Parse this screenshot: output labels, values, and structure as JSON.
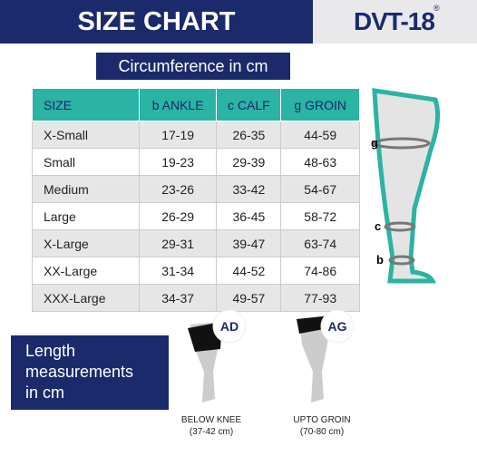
{
  "header": {
    "title": "SIZE CHART",
    "logo": "DVT-18",
    "logo_mark": "®"
  },
  "table": {
    "caption": "Circumference in cm",
    "columns": [
      "SIZE",
      "b ANKLE",
      "c CALF",
      "g GROIN"
    ],
    "rows": [
      [
        "X-Small",
        "17-19",
        "26-35",
        "44-59"
      ],
      [
        "Small",
        "19-23",
        "29-39",
        "48-63"
      ],
      [
        "Medium",
        "23-26",
        "33-42",
        "54-67"
      ],
      [
        "Large",
        "26-29",
        "36-45",
        "58-72"
      ],
      [
        "X-Large",
        "29-31",
        "39-47",
        "63-74"
      ],
      [
        "XX-Large",
        "31-34",
        "44-52",
        "74-86"
      ],
      [
        "XXX-Large",
        "34-37",
        "49-57",
        "77-93"
      ]
    ]
  },
  "leg_labels": [
    "g",
    "c",
    "b"
  ],
  "length": {
    "title_lines": [
      "Length",
      "measurements",
      "in cm"
    ],
    "items": [
      {
        "badge": "AD",
        "label": "BELOW KNEE",
        "range": "(37-42 cm)"
      },
      {
        "badge": "AG",
        "label": "UPTO GROIN",
        "range": "(70-80 cm)"
      }
    ]
  }
}
